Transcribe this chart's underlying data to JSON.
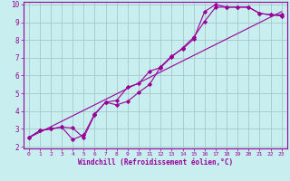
{
  "bg_color": "#c8eef0",
  "line_color": "#990099",
  "grid_color": "#aacccc",
  "xlabel": "Windchill (Refroidissement éolien,°C)",
  "ylim": [
    2,
    10
  ],
  "xlim": [
    -0.5,
    23.5
  ],
  "yticks": [
    2,
    3,
    4,
    5,
    6,
    7,
    8,
    9,
    10
  ],
  "xticks": [
    0,
    1,
    2,
    3,
    4,
    5,
    6,
    7,
    8,
    9,
    10,
    11,
    12,
    13,
    14,
    15,
    16,
    17,
    18,
    19,
    20,
    21,
    22,
    23
  ],
  "line1_x": [
    0,
    1,
    2,
    3,
    4,
    5,
    6,
    7,
    8,
    9,
    10,
    11,
    12,
    13,
    14,
    15,
    16,
    17,
    18,
    19,
    20,
    21,
    22,
    23
  ],
  "line1_y": [
    2.5,
    2.9,
    3.0,
    3.1,
    3.05,
    2.5,
    3.8,
    4.5,
    4.35,
    4.55,
    5.05,
    5.5,
    6.5,
    7.1,
    7.5,
    8.05,
    9.6,
    10.0,
    9.85,
    9.85,
    9.85,
    9.5,
    9.42,
    9.35
  ],
  "line2_x": [
    0,
    1,
    2,
    3,
    4,
    5,
    6,
    7,
    8,
    9,
    10,
    11,
    12,
    13,
    14,
    15,
    16,
    17,
    18,
    19,
    20,
    21,
    22,
    23
  ],
  "line2_y": [
    2.5,
    2.9,
    3.0,
    3.1,
    2.4,
    2.65,
    3.85,
    4.5,
    4.6,
    5.35,
    5.55,
    6.25,
    6.45,
    7.05,
    7.55,
    8.15,
    9.05,
    9.85,
    9.85,
    9.85,
    9.85,
    9.5,
    9.42,
    9.42
  ],
  "line3_x": [
    0,
    23
  ],
  "line3_y": [
    2.5,
    9.6
  ]
}
